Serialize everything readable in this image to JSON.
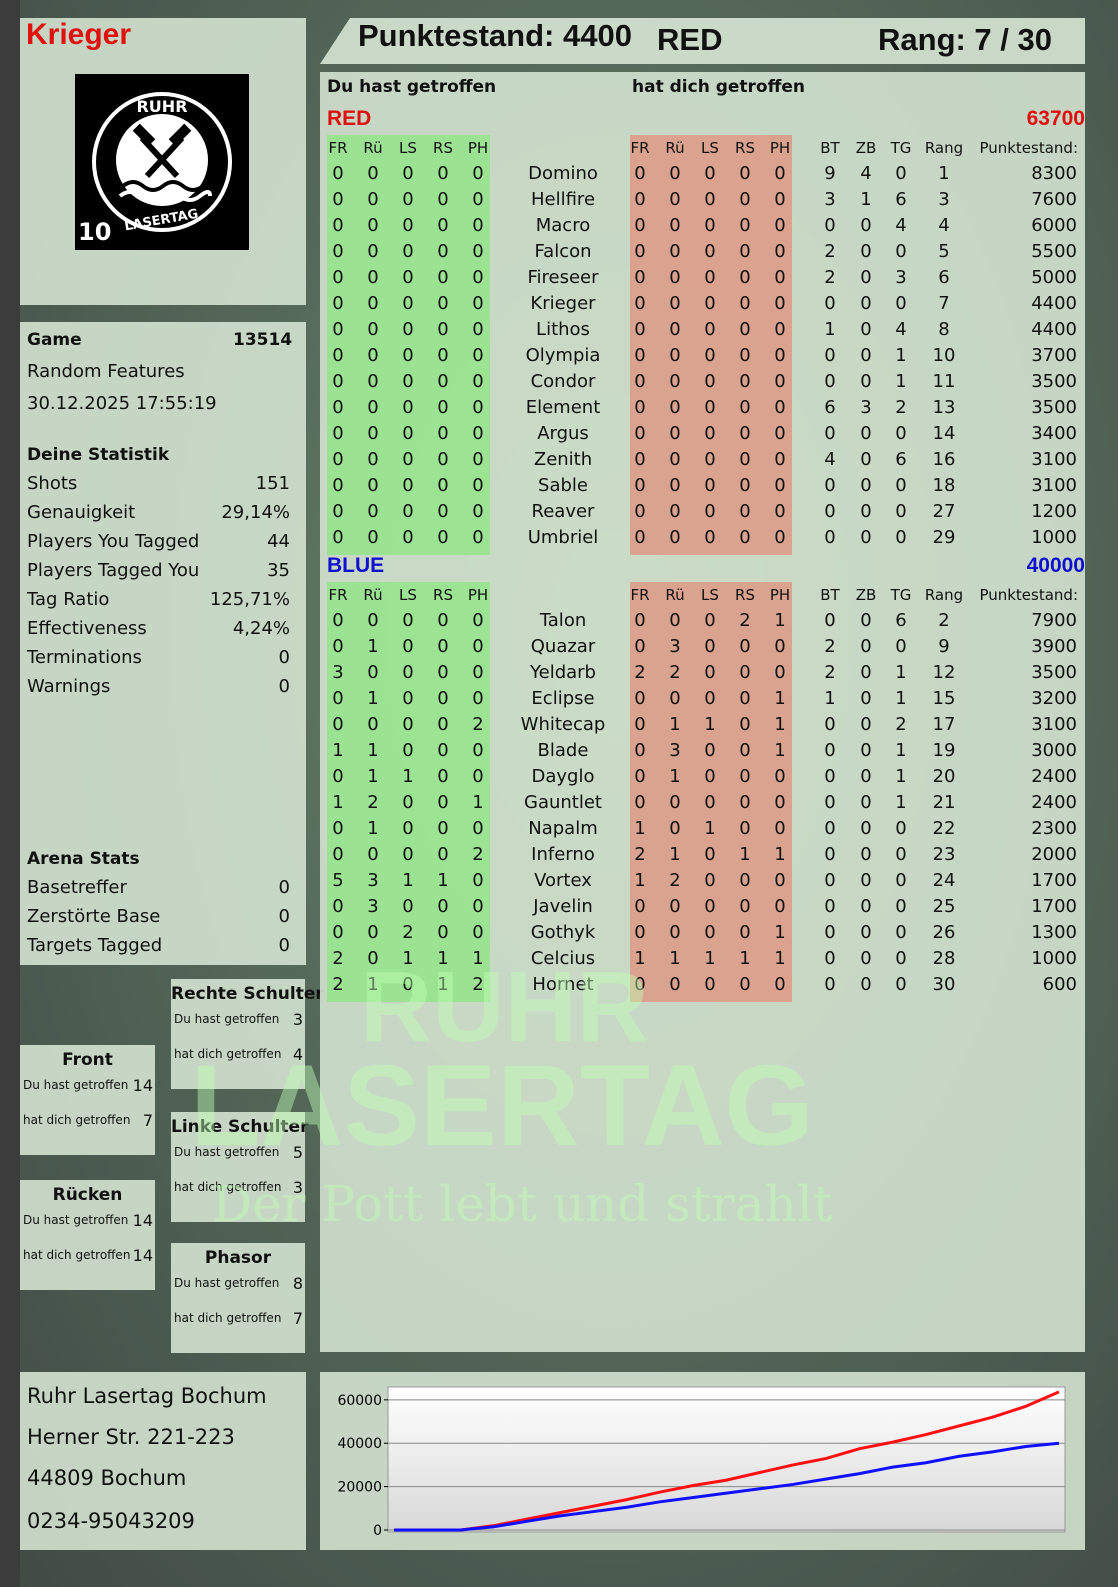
{
  "player": {
    "name": "Krieger"
  },
  "logo": {
    "top_text": "RUHR",
    "bottom_text": "LASERTAG",
    "badge": "10"
  },
  "header": {
    "score_label": "Punktestand: 4400",
    "team": "RED",
    "rank": "Rang: 7 / 30"
  },
  "game": {
    "label": "Game",
    "number": "13514",
    "mode": "Random Features",
    "datetime": "30.12.2025 17:55:19"
  },
  "stats": {
    "title": "Deine Statistik",
    "items": [
      {
        "label": "Shots",
        "value": "151"
      },
      {
        "label": "Genauigkeit",
        "value": "29,14%"
      },
      {
        "label": "Players You Tagged",
        "value": "44"
      },
      {
        "label": "Players Tagged You",
        "value": "35"
      },
      {
        "label": "Tag Ratio",
        "value": "125,71%"
      },
      {
        "label": "Effectiveness",
        "value": "4,24%"
      },
      {
        "label": "Terminations",
        "value": "0"
      },
      {
        "label": "Warnings",
        "value": "0"
      }
    ]
  },
  "arena": {
    "title": "Arena Stats",
    "items": [
      {
        "label": "Basetreffer",
        "value": "0"
      },
      {
        "label": "Zerstörte Base",
        "value": "0"
      },
      {
        "label": "Targets Tagged",
        "value": "0"
      }
    ]
  },
  "zones": {
    "hit_label": "Du hast getroffen",
    "got_label": "hat dich getroffen",
    "front": {
      "title": "Front",
      "hit": "14",
      "got": "7"
    },
    "back": {
      "title": "Rücken",
      "hit": "14",
      "got": "14"
    },
    "right": {
      "title": "Rechte Schulter",
      "hit": "3",
      "got": "4"
    },
    "left": {
      "title": "Linke Schulter",
      "hit": "5",
      "got": "3"
    },
    "phasor": {
      "title": "Phasor",
      "hit": "8",
      "got": "7"
    }
  },
  "address": {
    "line1": "Ruhr Lasertag Bochum",
    "line2": "Herner Str. 221-223",
    "line3": "44809 Bochum",
    "line4": "0234-95043209"
  },
  "table": {
    "you_hit": "Du hast getroffen",
    "hit_you": "hat dich getroffen",
    "hit_cols": [
      "FR",
      "Rü",
      "LS",
      "RS",
      "PH"
    ],
    "stat_cols": [
      "BT",
      "ZB",
      "TG",
      "Rang"
    ],
    "score_col": "Punktestand:",
    "teams": [
      {
        "name": "RED",
        "score": "63700",
        "color": "#e01010",
        "players": [
          {
            "name": "Domino",
            "hit": [
              0,
              0,
              0,
              0,
              0
            ],
            "got": [
              0,
              0,
              0,
              0,
              0
            ],
            "stats": [
              9,
              4,
              0,
              1
            ],
            "score": 8300
          },
          {
            "name": "Hellfire",
            "hit": [
              0,
              0,
              0,
              0,
              0
            ],
            "got": [
              0,
              0,
              0,
              0,
              0
            ],
            "stats": [
              3,
              1,
              6,
              3
            ],
            "score": 7600
          },
          {
            "name": "Macro",
            "hit": [
              0,
              0,
              0,
              0,
              0
            ],
            "got": [
              0,
              0,
              0,
              0,
              0
            ],
            "stats": [
              0,
              0,
              4,
              4
            ],
            "score": 6000
          },
          {
            "name": "Falcon",
            "hit": [
              0,
              0,
              0,
              0,
              0
            ],
            "got": [
              0,
              0,
              0,
              0,
              0
            ],
            "stats": [
              2,
              0,
              0,
              5
            ],
            "score": 5500
          },
          {
            "name": "Fireseer",
            "hit": [
              0,
              0,
              0,
              0,
              0
            ],
            "got": [
              0,
              0,
              0,
              0,
              0
            ],
            "stats": [
              2,
              0,
              3,
              6
            ],
            "score": 5000
          },
          {
            "name": "Krieger",
            "hit": [
              0,
              0,
              0,
              0,
              0
            ],
            "got": [
              0,
              0,
              0,
              0,
              0
            ],
            "stats": [
              0,
              0,
              0,
              7
            ],
            "score": 4400
          },
          {
            "name": "Lithos",
            "hit": [
              0,
              0,
              0,
              0,
              0
            ],
            "got": [
              0,
              0,
              0,
              0,
              0
            ],
            "stats": [
              1,
              0,
              4,
              8
            ],
            "score": 4400
          },
          {
            "name": "Olympia",
            "hit": [
              0,
              0,
              0,
              0,
              0
            ],
            "got": [
              0,
              0,
              0,
              0,
              0
            ],
            "stats": [
              0,
              0,
              1,
              10
            ],
            "score": 3700
          },
          {
            "name": "Condor",
            "hit": [
              0,
              0,
              0,
              0,
              0
            ],
            "got": [
              0,
              0,
              0,
              0,
              0
            ],
            "stats": [
              0,
              0,
              1,
              11
            ],
            "score": 3500
          },
          {
            "name": "Element",
            "hit": [
              0,
              0,
              0,
              0,
              0
            ],
            "got": [
              0,
              0,
              0,
              0,
              0
            ],
            "stats": [
              6,
              3,
              2,
              13
            ],
            "score": 3500
          },
          {
            "name": "Argus",
            "hit": [
              0,
              0,
              0,
              0,
              0
            ],
            "got": [
              0,
              0,
              0,
              0,
              0
            ],
            "stats": [
              0,
              0,
              0,
              14
            ],
            "score": 3400
          },
          {
            "name": "Zenith",
            "hit": [
              0,
              0,
              0,
              0,
              0
            ],
            "got": [
              0,
              0,
              0,
              0,
              0
            ],
            "stats": [
              4,
              0,
              6,
              16
            ],
            "score": 3100
          },
          {
            "name": "Sable",
            "hit": [
              0,
              0,
              0,
              0,
              0
            ],
            "got": [
              0,
              0,
              0,
              0,
              0
            ],
            "stats": [
              0,
              0,
              0,
              18
            ],
            "score": 3100
          },
          {
            "name": "Reaver",
            "hit": [
              0,
              0,
              0,
              0,
              0
            ],
            "got": [
              0,
              0,
              0,
              0,
              0
            ],
            "stats": [
              0,
              0,
              0,
              27
            ],
            "score": 1200
          },
          {
            "name": "Umbriel",
            "hit": [
              0,
              0,
              0,
              0,
              0
            ],
            "got": [
              0,
              0,
              0,
              0,
              0
            ],
            "stats": [
              0,
              0,
              0,
              29
            ],
            "score": 1000
          }
        ]
      },
      {
        "name": "BLUE",
        "score": "40000",
        "color": "#1010d0",
        "players": [
          {
            "name": "Talon",
            "hit": [
              0,
              0,
              0,
              0,
              0
            ],
            "got": [
              0,
              0,
              0,
              2,
              1
            ],
            "stats": [
              0,
              0,
              6,
              2
            ],
            "score": 7900
          },
          {
            "name": "Quazar",
            "hit": [
              0,
              1,
              0,
              0,
              0
            ],
            "got": [
              0,
              3,
              0,
              0,
              0
            ],
            "stats": [
              2,
              0,
              0,
              9
            ],
            "score": 3900
          },
          {
            "name": "Yeldarb",
            "hit": [
              3,
              0,
              0,
              0,
              0
            ],
            "got": [
              2,
              2,
              0,
              0,
              0
            ],
            "stats": [
              2,
              0,
              1,
              12
            ],
            "score": 3500
          },
          {
            "name": "Eclipse",
            "hit": [
              0,
              1,
              0,
              0,
              0
            ],
            "got": [
              0,
              0,
              0,
              0,
              1
            ],
            "stats": [
              1,
              0,
              1,
              15
            ],
            "score": 3200
          },
          {
            "name": "Whitecap",
            "hit": [
              0,
              0,
              0,
              0,
              2
            ],
            "got": [
              0,
              1,
              1,
              0,
              1
            ],
            "stats": [
              0,
              0,
              2,
              17
            ],
            "score": 3100
          },
          {
            "name": "Blade",
            "hit": [
              1,
              1,
              0,
              0,
              0
            ],
            "got": [
              0,
              3,
              0,
              0,
              1
            ],
            "stats": [
              0,
              0,
              1,
              19
            ],
            "score": 3000
          },
          {
            "name": "Dayglo",
            "hit": [
              0,
              1,
              1,
              0,
              0
            ],
            "got": [
              0,
              1,
              0,
              0,
              0
            ],
            "stats": [
              0,
              0,
              1,
              20
            ],
            "score": 2400
          },
          {
            "name": "Gauntlet",
            "hit": [
              1,
              2,
              0,
              0,
              1
            ],
            "got": [
              0,
              0,
              0,
              0,
              0
            ],
            "stats": [
              0,
              0,
              1,
              21
            ],
            "score": 2400
          },
          {
            "name": "Napalm",
            "hit": [
              0,
              1,
              0,
              0,
              0
            ],
            "got": [
              1,
              0,
              1,
              0,
              0
            ],
            "stats": [
              0,
              0,
              0,
              22
            ],
            "score": 2300
          },
          {
            "name": "Inferno",
            "hit": [
              0,
              0,
              0,
              0,
              2
            ],
            "got": [
              2,
              1,
              0,
              1,
              1
            ],
            "stats": [
              0,
              0,
              0,
              23
            ],
            "score": 2000
          },
          {
            "name": "Vortex",
            "hit": [
              5,
              3,
              1,
              1,
              0
            ],
            "got": [
              1,
              2,
              0,
              0,
              0
            ],
            "stats": [
              0,
              0,
              0,
              24
            ],
            "score": 1700
          },
          {
            "name": "Javelin",
            "hit": [
              0,
              3,
              0,
              0,
              0
            ],
            "got": [
              0,
              0,
              0,
              0,
              0
            ],
            "stats": [
              0,
              0,
              0,
              25
            ],
            "score": 1700
          },
          {
            "name": "Gothyk",
            "hit": [
              0,
              0,
              2,
              0,
              0
            ],
            "got": [
              0,
              0,
              0,
              0,
              1
            ],
            "stats": [
              0,
              0,
              0,
              26
            ],
            "score": 1300
          },
          {
            "name": "Celcius",
            "hit": [
              2,
              0,
              1,
              1,
              1
            ],
            "got": [
              1,
              1,
              1,
              1,
              1
            ],
            "stats": [
              0,
              0,
              0,
              28
            ],
            "score": 1000
          },
          {
            "name": "Hornet",
            "hit": [
              2,
              1,
              0,
              1,
              2
            ],
            "got": [
              0,
              0,
              0,
              0,
              0
            ],
            "stats": [
              0,
              0,
              0,
              30
            ],
            "score": 600
          }
        ]
      }
    ]
  },
  "watermark": {
    "line1": "RUHR",
    "line2": "LASERTAG",
    "tagline": "Der Pott lebt und strahlt"
  },
  "chart_data": {
    "type": "line",
    "ylim": [
      0,
      65000
    ],
    "yticks": [
      "60000",
      "40000",
      "20000",
      "0"
    ],
    "ytick_values": [
      60000,
      40000,
      20000,
      0
    ],
    "grid": true,
    "x": [
      0,
      1,
      2,
      3,
      4,
      5,
      6,
      7,
      8,
      9,
      10,
      11,
      12,
      13,
      14,
      15,
      16,
      17,
      18,
      19,
      20
    ],
    "series": [
      {
        "color": "#ff1010",
        "values": [
          0,
          0,
          0,
          2000,
          5000,
          8000,
          11000,
          14000,
          17500,
          20500,
          23000,
          26500,
          30000,
          33000,
          37500,
          40500,
          44000,
          48000,
          52000,
          57000,
          63700
        ]
      },
      {
        "color": "#1010ff",
        "values": [
          0,
          0,
          0,
          1500,
          4000,
          6500,
          8500,
          10500,
          13000,
          15000,
          17000,
          19000,
          21000,
          23500,
          26000,
          29000,
          31000,
          34000,
          36000,
          38500,
          40000
        ]
      }
    ]
  }
}
